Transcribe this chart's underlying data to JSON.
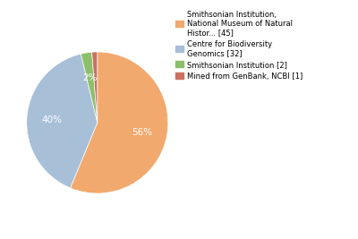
{
  "labels": [
    "Smithsonian Institution,\nNational Museum of Natural\nHistor... [45]",
    "Centre for Biodiversity\nGenomics [32]",
    "Smithsonian Institution [2]",
    "Mined from GenBank, NCBI [1]"
  ],
  "values": [
    45,
    32,
    2,
    1
  ],
  "colors": [
    "#f2a96e",
    "#a8bfd8",
    "#8bbf6a",
    "#cc7060"
  ],
  "startangle": 90,
  "background_color": "#ffffff",
  "text_color": "#ffffff",
  "fontsize": 7.5
}
